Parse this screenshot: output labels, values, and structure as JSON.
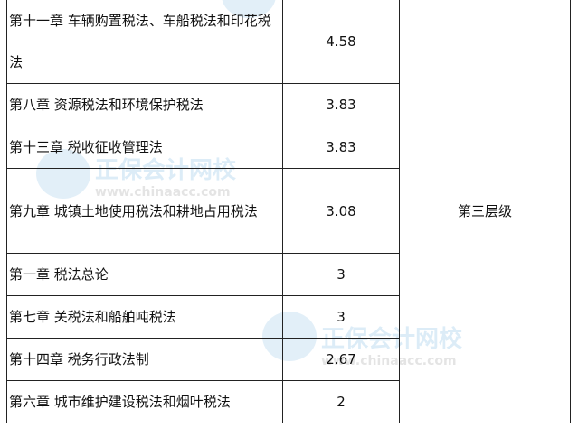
{
  "table": {
    "rows": [
      {
        "chapter": "第十一章 车辆购置税法、车船税法和印花税法",
        "score": "4.58"
      },
      {
        "chapter": "第八章 资源税法和环境保护税法",
        "score": "3.83"
      },
      {
        "chapter": "第十三章 税收征收管理法",
        "score": "3.83"
      },
      {
        "chapter": "第九章 城镇土地使用税法和耕地占用税法",
        "score": "3.08"
      },
      {
        "chapter": "第一章 税法总论",
        "score": "3"
      },
      {
        "chapter": "第七章 关税法和船舶吨税法",
        "score": "3"
      },
      {
        "chapter": "第十四章 税务行政法制",
        "score": "2.67"
      },
      {
        "chapter": "第六章 城市维护建设税法和烟叶税法",
        "score": "2"
      }
    ],
    "level": "第三层级"
  },
  "watermark": {
    "name": "正保会计网校",
    "url": "www.chinaacc.com"
  }
}
